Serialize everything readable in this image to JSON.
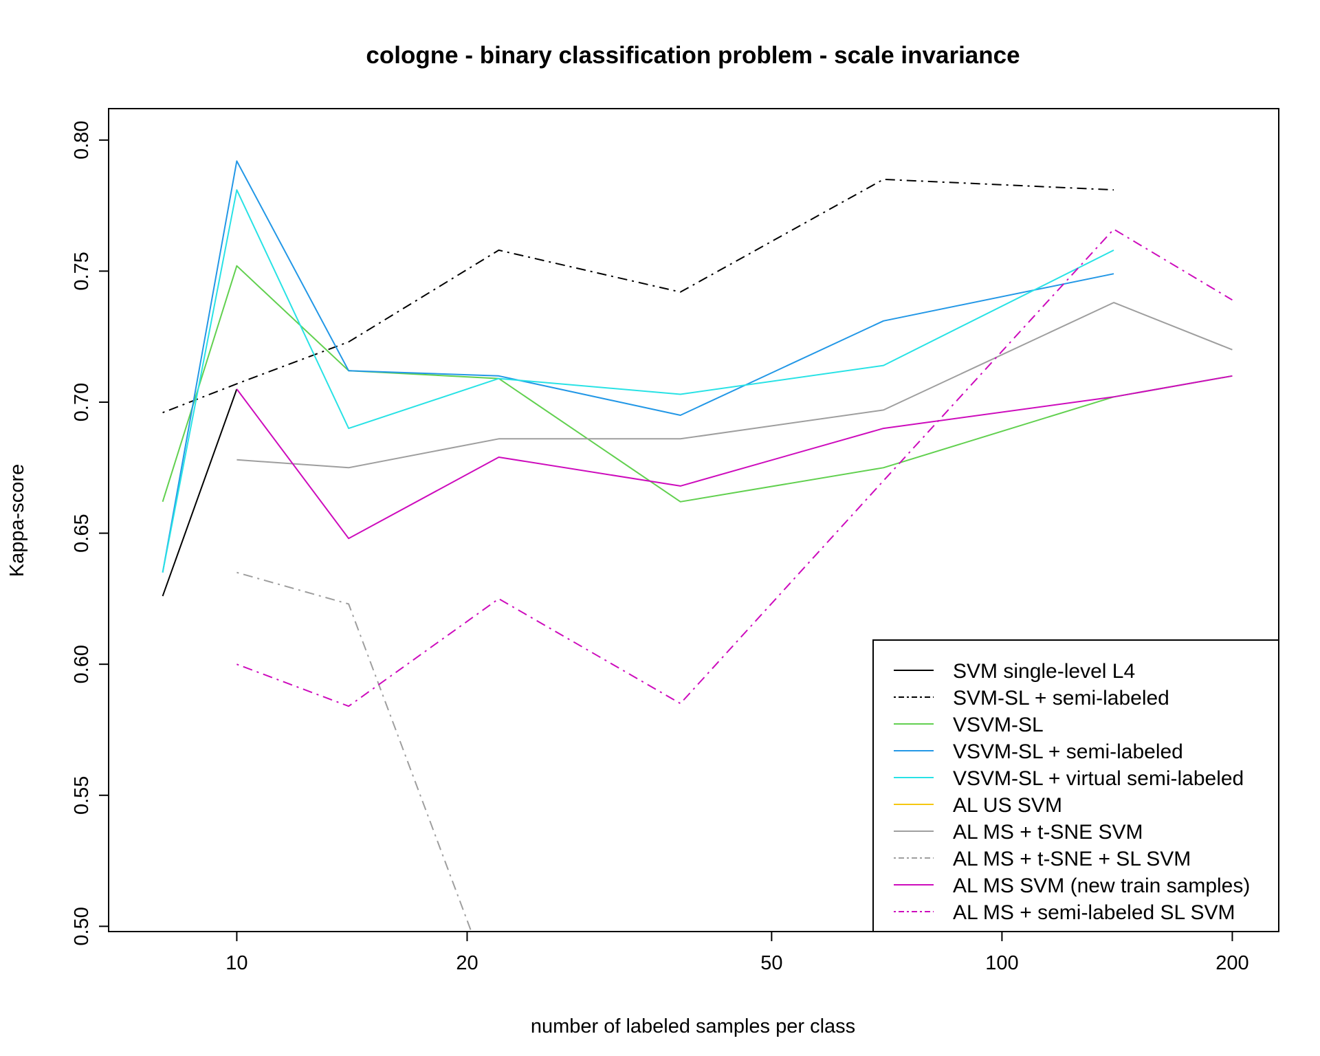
{
  "chart_data": {
    "type": "line",
    "title": "cologne - binary classification problem - scale invariance",
    "xlabel": "number of labeled samples per class",
    "ylabel": "Kappa-score",
    "x_scale": "log",
    "x_ticks": [
      10,
      20,
      50,
      100,
      200
    ],
    "x_tick_labels": [
      "10",
      "20",
      "50",
      "100",
      "200"
    ],
    "y_ticks": [
      0.5,
      0.55,
      0.6,
      0.65,
      0.7,
      0.75,
      0.8
    ],
    "y_tick_labels": [
      "0.50",
      "0.55",
      "0.60",
      "0.65",
      "0.70",
      "0.75",
      "0.80"
    ],
    "xlim": [
      6.8,
      230
    ],
    "ylim": [
      0.498,
      0.812
    ],
    "grid": false,
    "legend_position": "bottom-right",
    "x": [
      8,
      10,
      14,
      22,
      38,
      70,
      140,
      200
    ],
    "series": [
      {
        "name": "SVM single-level L4",
        "color": "#000000",
        "dash": "solid",
        "values": [
          0.626,
          0.705,
          null,
          null,
          null,
          null,
          null,
          null
        ]
      },
      {
        "name": "SVM-SL + semi-labeled",
        "color": "#000000",
        "dash": "dotdash",
        "values": [
          0.696,
          0.707,
          0.723,
          0.758,
          0.742,
          0.785,
          0.781,
          null
        ]
      },
      {
        "name": "VSVM-SL",
        "color": "#61D04F",
        "dash": "solid",
        "values": [
          0.662,
          0.752,
          0.712,
          0.709,
          0.662,
          0.675,
          0.702,
          0.71
        ]
      },
      {
        "name": "VSVM-SL + semi-labeled",
        "color": "#2297E6",
        "dash": "solid",
        "values": [
          0.635,
          0.792,
          0.712,
          0.71,
          0.695,
          0.731,
          0.749,
          null
        ]
      },
      {
        "name": "VSVM-SL + virtual semi-labeled",
        "color": "#28E2E5",
        "dash": "solid",
        "values": [
          0.635,
          0.781,
          0.69,
          0.709,
          0.703,
          0.714,
          0.758,
          null
        ]
      },
      {
        "name": "AL US SVM",
        "color": "#F5C710",
        "dash": "solid",
        "values": [
          null,
          null,
          null,
          null,
          null,
          null,
          null,
          null
        ]
      },
      {
        "name": "AL MS + t-SNE SVM",
        "color": "#9E9E9E",
        "dash": "solid",
        "values": [
          null,
          0.678,
          0.675,
          0.686,
          0.686,
          0.697,
          0.738,
          0.72
        ]
      },
      {
        "name": "AL MS + t-SNE + SL SVM",
        "color": "#9E9E9E",
        "dash": "dotdash",
        "values": [
          null,
          0.635,
          0.623,
          0.47,
          null,
          null,
          null,
          null
        ]
      },
      {
        "name": "AL MS SVM (new train samples)",
        "color": "#CD0BBC",
        "dash": "solid",
        "values": [
          null,
          0.705,
          0.648,
          0.679,
          0.668,
          0.69,
          0.702,
          0.71
        ]
      },
      {
        "name": "AL MS + semi-labeled SL SVM",
        "color": "#CD0BBC",
        "dash": "dotdash",
        "values": [
          null,
          0.6,
          0.584,
          0.625,
          0.585,
          0.67,
          0.766,
          0.739
        ]
      }
    ]
  }
}
